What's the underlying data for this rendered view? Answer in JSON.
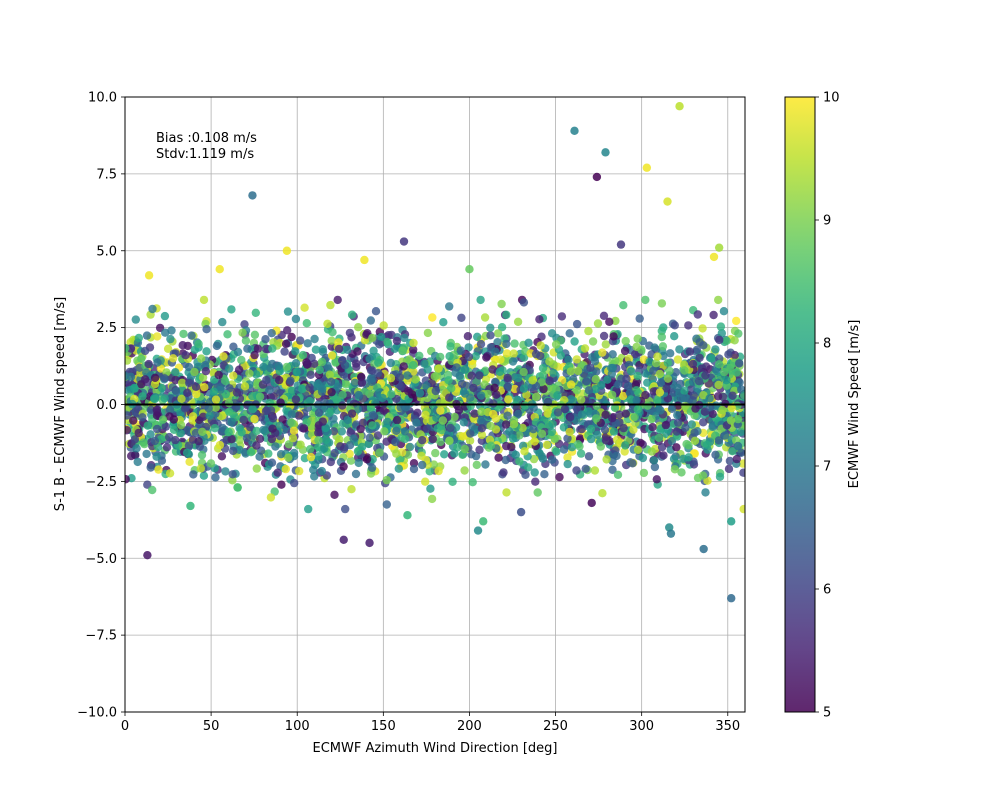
{
  "chart_data": {
    "type": "scatter",
    "title": "",
    "xlabel": "ECMWF Azimuth Wind Direction [deg]",
    "ylabel": "S-1 B - ECMWF Wind speed [m/s]",
    "xlim": [
      0,
      360
    ],
    "ylim": [
      -10,
      10
    ],
    "x_ticks": [
      "0",
      "50",
      "100",
      "150",
      "200",
      "250",
      "300",
      "350"
    ],
    "x_tick_values": [
      0,
      50,
      100,
      150,
      200,
      250,
      300,
      350
    ],
    "y_ticks": [
      "−10.0",
      "−7.5",
      "−5.0",
      "−2.5",
      "0.0",
      "2.5",
      "5.0",
      "7.5",
      "10.0"
    ],
    "y_tick_values": [
      -10,
      -7.5,
      -5,
      -2.5,
      0,
      2.5,
      5,
      7.5,
      10
    ],
    "grid": true,
    "zero_line": 0,
    "annotation": [
      "Bias :0.108 m/s",
      "Stdv:1.119 m/s"
    ],
    "colorbar": {
      "label": "ECMWF Wind Speed [m/s]",
      "range": [
        5,
        10
      ],
      "ticks": [
        "5",
        "6",
        "7",
        "8",
        "9",
        "10"
      ],
      "tick_values": [
        5,
        6,
        7,
        8,
        9,
        10
      ],
      "colormap": "viridis"
    },
    "highlighted_points": [
      {
        "x": 322,
        "y": 9.7,
        "c": 9.5
      },
      {
        "x": 261,
        "y": 8.9,
        "c": 7.2
      },
      {
        "x": 279,
        "y": 8.2,
        "c": 7.3
      },
      {
        "x": 274,
        "y": 7.4,
        "c": 5.0
      },
      {
        "x": 303,
        "y": 7.7,
        "c": 9.9
      },
      {
        "x": 74,
        "y": 6.8,
        "c": 6.8
      },
      {
        "x": 315,
        "y": 6.6,
        "c": 9.7
      },
      {
        "x": 162,
        "y": 5.3,
        "c": 5.8
      },
      {
        "x": 94,
        "y": 5.0,
        "c": 9.9
      },
      {
        "x": 345,
        "y": 5.1,
        "c": 9.3
      },
      {
        "x": 14,
        "y": 4.2,
        "c": 9.9
      },
      {
        "x": 55,
        "y": 4.4,
        "c": 9.9
      },
      {
        "x": 139,
        "y": 4.7,
        "c": 9.9
      },
      {
        "x": 200,
        "y": 4.4,
        "c": 8.8
      },
      {
        "x": 342,
        "y": 4.8,
        "c": 9.9
      },
      {
        "x": 288,
        "y": 5.2,
        "c": 5.8
      },
      {
        "x": 13,
        "y": -4.9,
        "c": 5.3
      },
      {
        "x": 127,
        "y": -4.4,
        "c": 5.4
      },
      {
        "x": 142,
        "y": -4.5,
        "c": 5.4
      },
      {
        "x": 205,
        "y": -4.1,
        "c": 7.4
      },
      {
        "x": 208,
        "y": -3.8,
        "c": 8.4
      },
      {
        "x": 230,
        "y": -3.5,
        "c": 6.2
      },
      {
        "x": 316,
        "y": -4.0,
        "c": 7.4
      },
      {
        "x": 317,
        "y": -4.2,
        "c": 7.0
      },
      {
        "x": 336,
        "y": -4.7,
        "c": 6.8
      },
      {
        "x": 352,
        "y": -3.8,
        "c": 7.8
      },
      {
        "x": 352,
        "y": -6.3,
        "c": 6.7
      },
      {
        "x": 164,
        "y": -3.6,
        "c": 8.3
      },
      {
        "x": 38,
        "y": -3.3,
        "c": 8.3
      },
      {
        "x": 271,
        "y": -3.2,
        "c": 5.1
      }
    ],
    "dense_band": {
      "point_count": 3600,
      "x_range": [
        0,
        360
      ],
      "y_mean": 0.108,
      "y_stdev": 1.119,
      "color_range": [
        5,
        10
      ]
    }
  }
}
